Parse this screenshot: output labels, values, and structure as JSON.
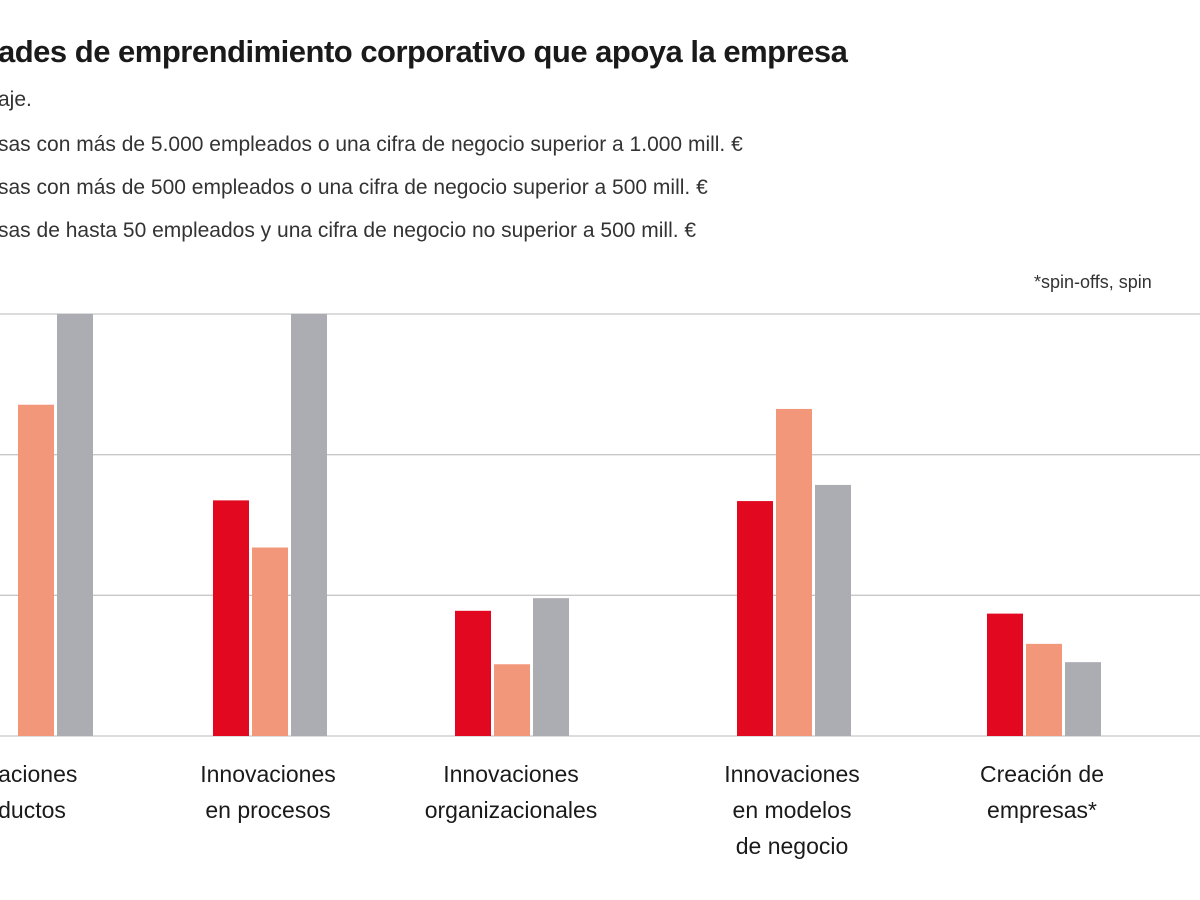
{
  "chart_data": {
    "type": "bar",
    "title": "ades de emprendimiento corporativo que apoya la empresa",
    "subtitle": "aje.",
    "note": "*spin-offs, spin",
    "colors": [
      "#e2081f",
      "#f3977a",
      "#acadb2"
    ],
    "series": [
      {
        "name": "sas con más de 5.000 empleados o una cifra de negocio superior a 1.000 mill. €",
        "values": [
          0,
          33.5,
          17.8,
          33.4,
          17.4
        ]
      },
      {
        "name": "sas con más de 500 empleados o una cifra de negocio superior a 500 mill. €",
        "values": [
          47.1,
          26.8,
          10.2,
          46.5,
          13.1
        ]
      },
      {
        "name": "sas de hasta 50 empleados y una cifra de negocio no superior a 500 mill. €",
        "values": [
          60,
          60,
          19.6,
          35.7,
          10.5
        ]
      }
    ],
    "categories": [
      [
        "vaciones",
        "ductos"
      ],
      [
        "Innovaciones",
        "en procesos"
      ],
      [
        "Innovaciones",
        "organizacionales"
      ],
      [
        "Innovaciones",
        "en modelos",
        "de negocio"
      ],
      [
        "Creación de",
        "empresas*"
      ]
    ],
    "ylim": [
      0,
      60
    ],
    "yticks": [
      0,
      20,
      40,
      60
    ],
    "grid": true
  }
}
